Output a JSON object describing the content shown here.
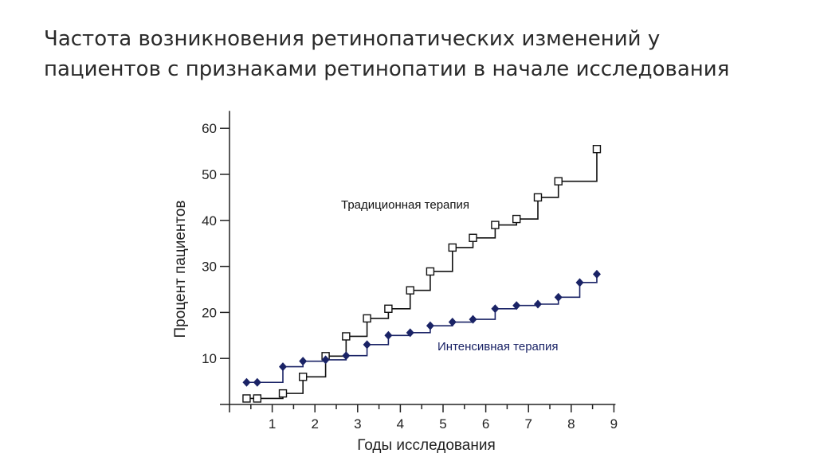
{
  "slide": {
    "title_line1": "Частота возникновения ретинопатических изменений у",
    "title_line2": "пациентов с признаками ретинопатии в начале исследования"
  },
  "colors": {
    "traditional": "#111111",
    "intensive": "#1a2366",
    "axis": "#222222"
  },
  "chart_data": {
    "type": "line",
    "step": true,
    "title": "",
    "xlabel": "Годы исследования",
    "ylabel": "Процент пациентов",
    "xlim": [
      0,
      9
    ],
    "ylim": [
      0,
      60
    ],
    "xticks": [
      "1",
      "2",
      "3",
      "4",
      "5",
      "6",
      "7",
      "8",
      "9"
    ],
    "yticks": [
      "10",
      "20",
      "30",
      "40",
      "50",
      "60"
    ],
    "grid": false,
    "series": [
      {
        "name": "Традиционная терапия",
        "marker": "open-square",
        "x": [
          0.4,
          0.65,
          1.25,
          1.72,
          2.25,
          2.73,
          3.22,
          3.72,
          4.23,
          4.7,
          5.22,
          5.7,
          6.22,
          6.72,
          7.22,
          7.7,
          8.6
        ],
        "y": [
          1.3,
          1.3,
          2.4,
          6.0,
          10.5,
          14.8,
          18.7,
          20.8,
          24.8,
          28.9,
          34.1,
          36.2,
          39.0,
          40.3,
          45.0,
          48.5,
          55.5
        ]
      },
      {
        "name": "Интенсивная терапия",
        "marker": "filled-diamond",
        "x": [
          0.4,
          0.65,
          1.25,
          1.72,
          2.25,
          2.73,
          3.22,
          3.72,
          4.23,
          4.7,
          5.22,
          5.7,
          6.22,
          6.72,
          7.22,
          7.7,
          8.2,
          8.6
        ],
        "y": [
          4.8,
          4.8,
          8.2,
          9.4,
          9.7,
          10.6,
          13.0,
          15.0,
          15.6,
          17.1,
          17.9,
          18.5,
          20.8,
          21.5,
          21.8,
          23.3,
          26.5,
          28.3
        ]
      }
    ]
  }
}
